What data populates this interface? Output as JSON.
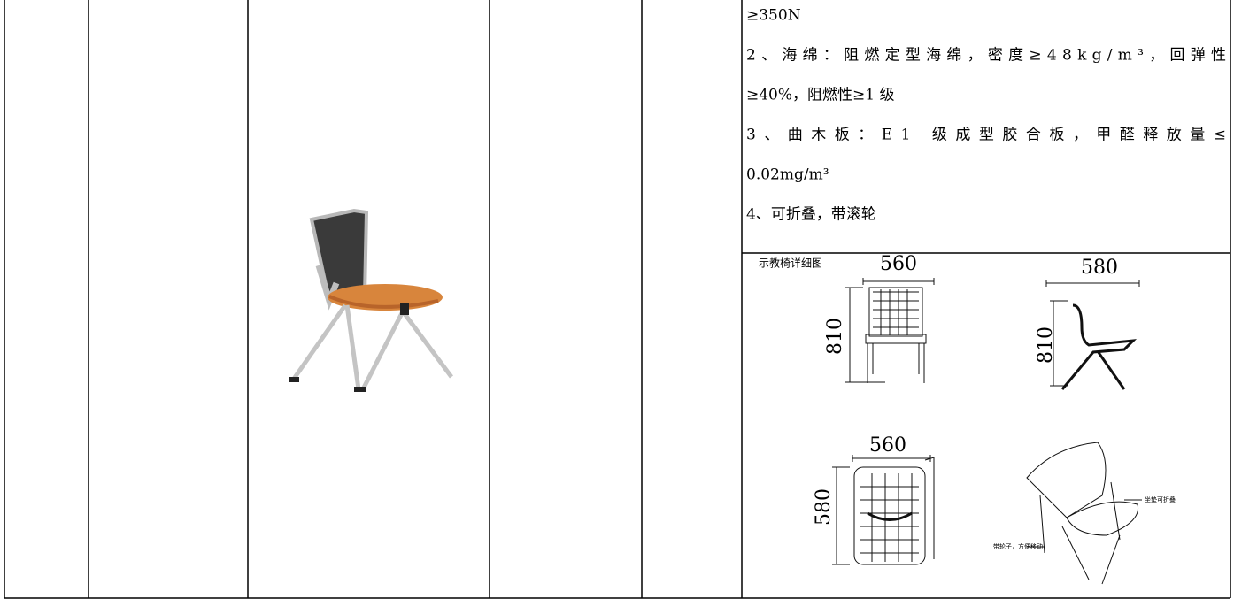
{
  "spec_lines": [
    "≥350N",
    "2、海绵：阻燃定型海绵，密度≥48kg/m³，回弹性",
    "≥40%，阻燃性≥1 级",
    "3、曲木板：E1 级成型胶合板，甲醛释放量≤",
    "0.02mg/m³",
    "4、可折叠，带滚轮"
  ],
  "detail_drawing": {
    "title": "示教椅详细图",
    "front_width": 560,
    "front_height": 810,
    "side_depth": 580,
    "side_height": 810,
    "top_width": 560,
    "top_depth": 580,
    "notes": [
      "坐垫可折叠",
      "带轮子，方便移动"
    ]
  }
}
